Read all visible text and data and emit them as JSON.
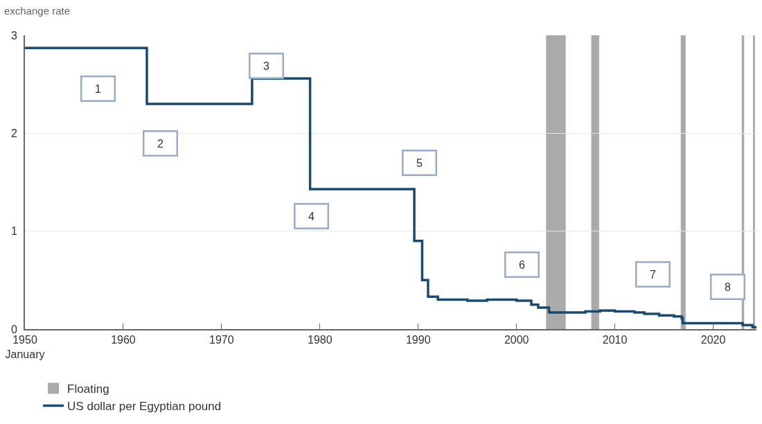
{
  "chart_data": {
    "type": "step",
    "ylabel": "exchange rate",
    "x": [
      1950,
      1962.4,
      1973.1,
      1979.0,
      1989.6,
      1990.4,
      1991.0,
      1992.0,
      1995.0,
      1997.0,
      2000.0,
      2001.5,
      2002.2,
      2003.3,
      2005.0,
      2007.0,
      2008.5,
      2010.0,
      2012.0,
      2013.0,
      2014.5,
      2016.0,
      2016.8,
      2016.9,
      2022.0,
      2023.0,
      2024.0,
      2024.4
    ],
    "series": [
      {
        "name": "US dollar per Egyptian pound",
        "color": "#1a4a70",
        "values": [
          2.87,
          2.3,
          2.56,
          1.43,
          0.9,
          0.5,
          0.33,
          0.3,
          0.29,
          0.3,
          0.29,
          0.25,
          0.22,
          0.17,
          0.17,
          0.18,
          0.19,
          0.18,
          0.17,
          0.155,
          0.14,
          0.13,
          0.11,
          0.06,
          0.06,
          0.04,
          0.02,
          0.02
        ]
      }
    ],
    "bands": [
      {
        "axis": "x",
        "from": 2003.0,
        "to": 2005.0,
        "label": "Floating",
        "color": "#aaaaaa"
      },
      {
        "axis": "x",
        "from": 2007.6,
        "to": 2008.4,
        "color": "#aaaaaa"
      },
      {
        "axis": "x",
        "from": 2016.7,
        "to": 2017.2,
        "color": "#aaaaaa"
      },
      {
        "axis": "x",
        "from": 2022.9,
        "to": 2023.15,
        "color": "#aaaaaa"
      },
      {
        "axis": "x",
        "from": 2024.05,
        "to": 2024.25,
        "color": "#aaaaaa"
      }
    ],
    "annotations": [
      "1",
      "2",
      "3",
      "4",
      "5",
      "6",
      "7",
      "8"
    ],
    "xlim": [
      1950,
      2024.4
    ],
    "xticks": [
      {
        "value": 1950,
        "label": "1950\nJanuary"
      },
      1960,
      1970,
      1980,
      1990,
      2000,
      2010,
      2020
    ],
    "ylim": [
      0,
      3
    ],
    "yticks": [
      0,
      1,
      2,
      3
    ],
    "grid": "y",
    "legend": "bottom left"
  }
}
